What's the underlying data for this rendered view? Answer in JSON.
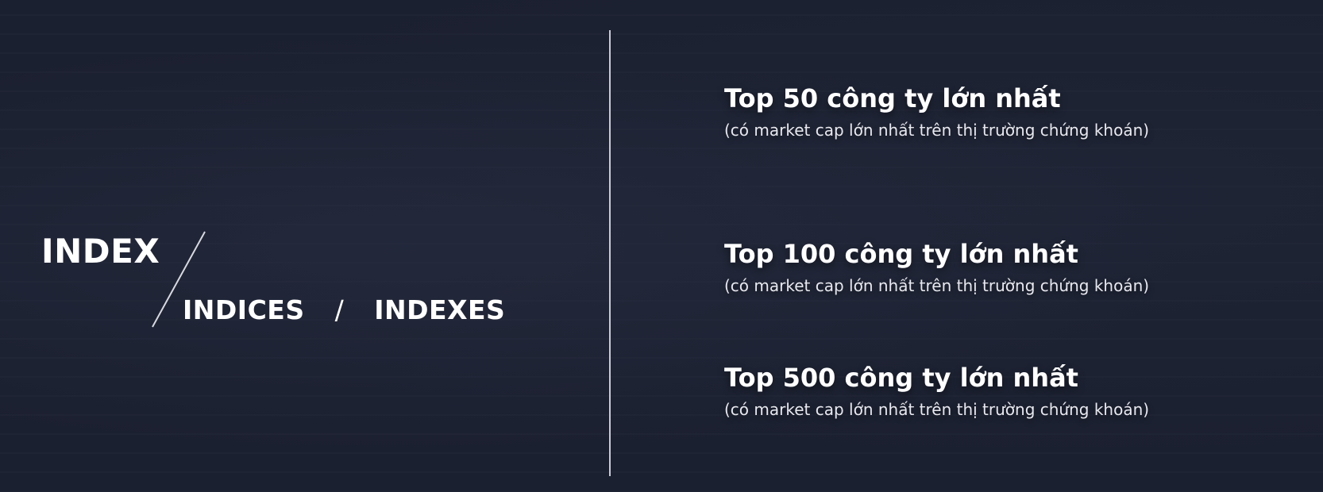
{
  "left": {
    "title": "INDEX",
    "variant_1": "INDICES",
    "separator": "/",
    "variant_2": "INDEXES"
  },
  "entries": [
    {
      "title": "Top 50 công ty lớn nhất",
      "subtitle": "(có market cap lớn nhất trên thị trường chứng khoán)"
    },
    {
      "title": "Top 100 công ty lớn nhất",
      "subtitle": "(có market cap lớn nhất trên thị trường chứng khoán)"
    },
    {
      "title": "Top 500 công ty lớn nhất",
      "subtitle": "(có market cap lớn nhất trên thị trường chứng khoán)"
    }
  ]
}
